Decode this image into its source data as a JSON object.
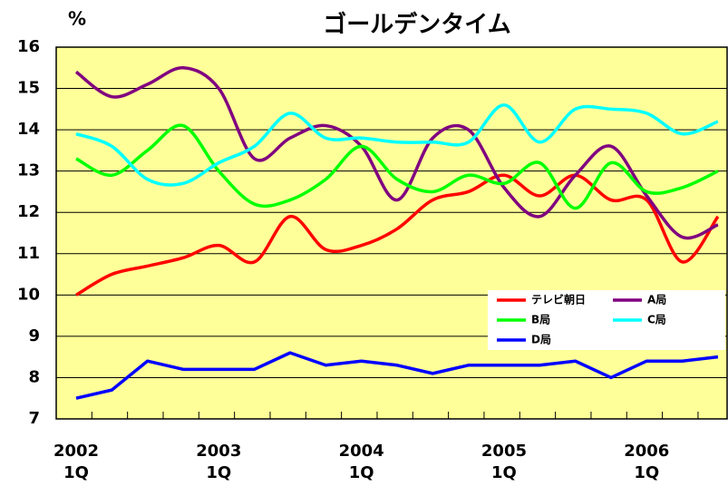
{
  "chart_data": {
    "type": "line",
    "title": "ゴールデンタイム",
    "y_label": "%",
    "categories": [
      "2002\n1Q",
      null,
      null,
      null,
      "2003\n1Q",
      null,
      null,
      null,
      "2004\n1Q",
      null,
      null,
      null,
      "2005\n1Q",
      null,
      null,
      null,
      "2006\n1Q",
      null,
      null
    ],
    "series": [
      {
        "name": "テレビ朝日",
        "color": "#ff0000",
        "smooth": true,
        "values": [
          10.0,
          10.5,
          10.7,
          10.9,
          11.2,
          10.8,
          11.9,
          11.1,
          11.2,
          11.6,
          12.3,
          12.5,
          12.9,
          12.4,
          12.9,
          12.3,
          12.3,
          10.8,
          11.9
        ]
      },
      {
        "name": "A局",
        "color": "#800080",
        "smooth": true,
        "values": [
          15.4,
          14.8,
          15.1,
          15.5,
          15.0,
          13.3,
          13.8,
          14.1,
          13.6,
          12.3,
          13.8,
          14.0,
          12.6,
          11.9,
          12.9,
          13.6,
          12.4,
          11.4,
          11.7
        ]
      },
      {
        "name": "B局",
        "color": "#00ff00",
        "smooth": true,
        "values": [
          13.3,
          12.9,
          13.5,
          14.1,
          13.0,
          12.2,
          12.3,
          12.8,
          13.6,
          12.8,
          12.5,
          12.9,
          12.7,
          13.2,
          12.1,
          13.2,
          12.5,
          12.6,
          13.0
        ]
      },
      {
        "name": "C局",
        "color": "#00ffff",
        "smooth": true,
        "values": [
          13.9,
          13.6,
          12.8,
          12.7,
          13.2,
          13.6,
          14.4,
          13.8,
          13.8,
          13.7,
          13.7,
          13.7,
          14.6,
          13.7,
          14.5,
          14.5,
          14.4,
          13.9,
          14.2
        ]
      },
      {
        "name": "D局",
        "color": "#0000ff",
        "smooth": false,
        "values": [
          7.5,
          7.7,
          8.4,
          8.2,
          8.2,
          8.2,
          8.6,
          8.3,
          8.4,
          8.3,
          8.1,
          8.3,
          8.3,
          8.3,
          8.4,
          8.0,
          8.4,
          8.4,
          8.5
        ]
      }
    ],
    "ylim": [
      7,
      16
    ],
    "yticks": [
      7,
      8,
      9,
      10,
      11,
      12,
      13,
      14,
      15,
      16
    ],
    "grid": true,
    "legend": "lower right"
  }
}
